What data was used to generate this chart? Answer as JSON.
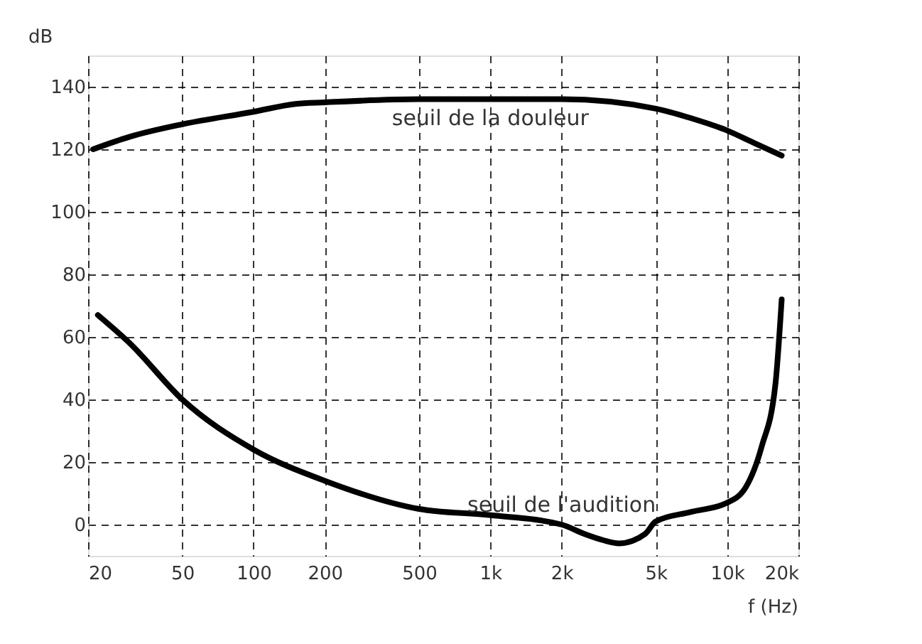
{
  "chart_data": {
    "type": "line",
    "xlabel": "f (Hz)",
    "ylabel": "dB",
    "log": "x",
    "xlim": [
      20,
      20000
    ],
    "ylim": [
      -10,
      150
    ],
    "xticks": [
      20,
      50,
      100,
      200,
      500,
      {
        "value": 1000,
        "label": "1k"
      },
      {
        "value": 2000,
        "label": "2k"
      },
      {
        "value": 5000,
        "label": "5k"
      },
      {
        "value": 10000,
        "label": "10k"
      },
      {
        "value": 20000,
        "label": "20k"
      }
    ],
    "yticks": [
      0,
      20,
      40,
      60,
      80,
      100,
      120,
      140
    ],
    "grid": true,
    "marker": "none",
    "line_style": "solid",
    "series": [
      {
        "color": "#000000",
        "x": [
          21,
          30,
          50,
          100,
          150,
          200,
          500,
          1000,
          2000,
          5000,
          7000,
          10000,
          13000,
          17000
        ],
        "values": [
          120,
          124,
          128,
          132,
          134.5,
          135,
          136,
          136,
          136,
          133,
          130,
          126,
          122,
          118
        ]
      },
      {
        "color": "#000000",
        "x": [
          22,
          30,
          50,
          100,
          200,
          500,
          1000,
          2000,
          2500,
          3000,
          3500,
          4500,
          5000,
          7000,
          10000,
          12000,
          14000,
          16000,
          17000
        ],
        "values": [
          67,
          58,
          40,
          24,
          14,
          5,
          3,
          0,
          -3,
          -5,
          -6,
          -3,
          1,
          4,
          7,
          12,
          25,
          45,
          72
        ]
      }
    ],
    "annotations": [
      {
        "text": "seuil de la douleur",
        "x": 1000,
        "y": 136
      },
      {
        "text": "seuil de l'audition",
        "x": 2000,
        "y": 0
      }
    ]
  }
}
